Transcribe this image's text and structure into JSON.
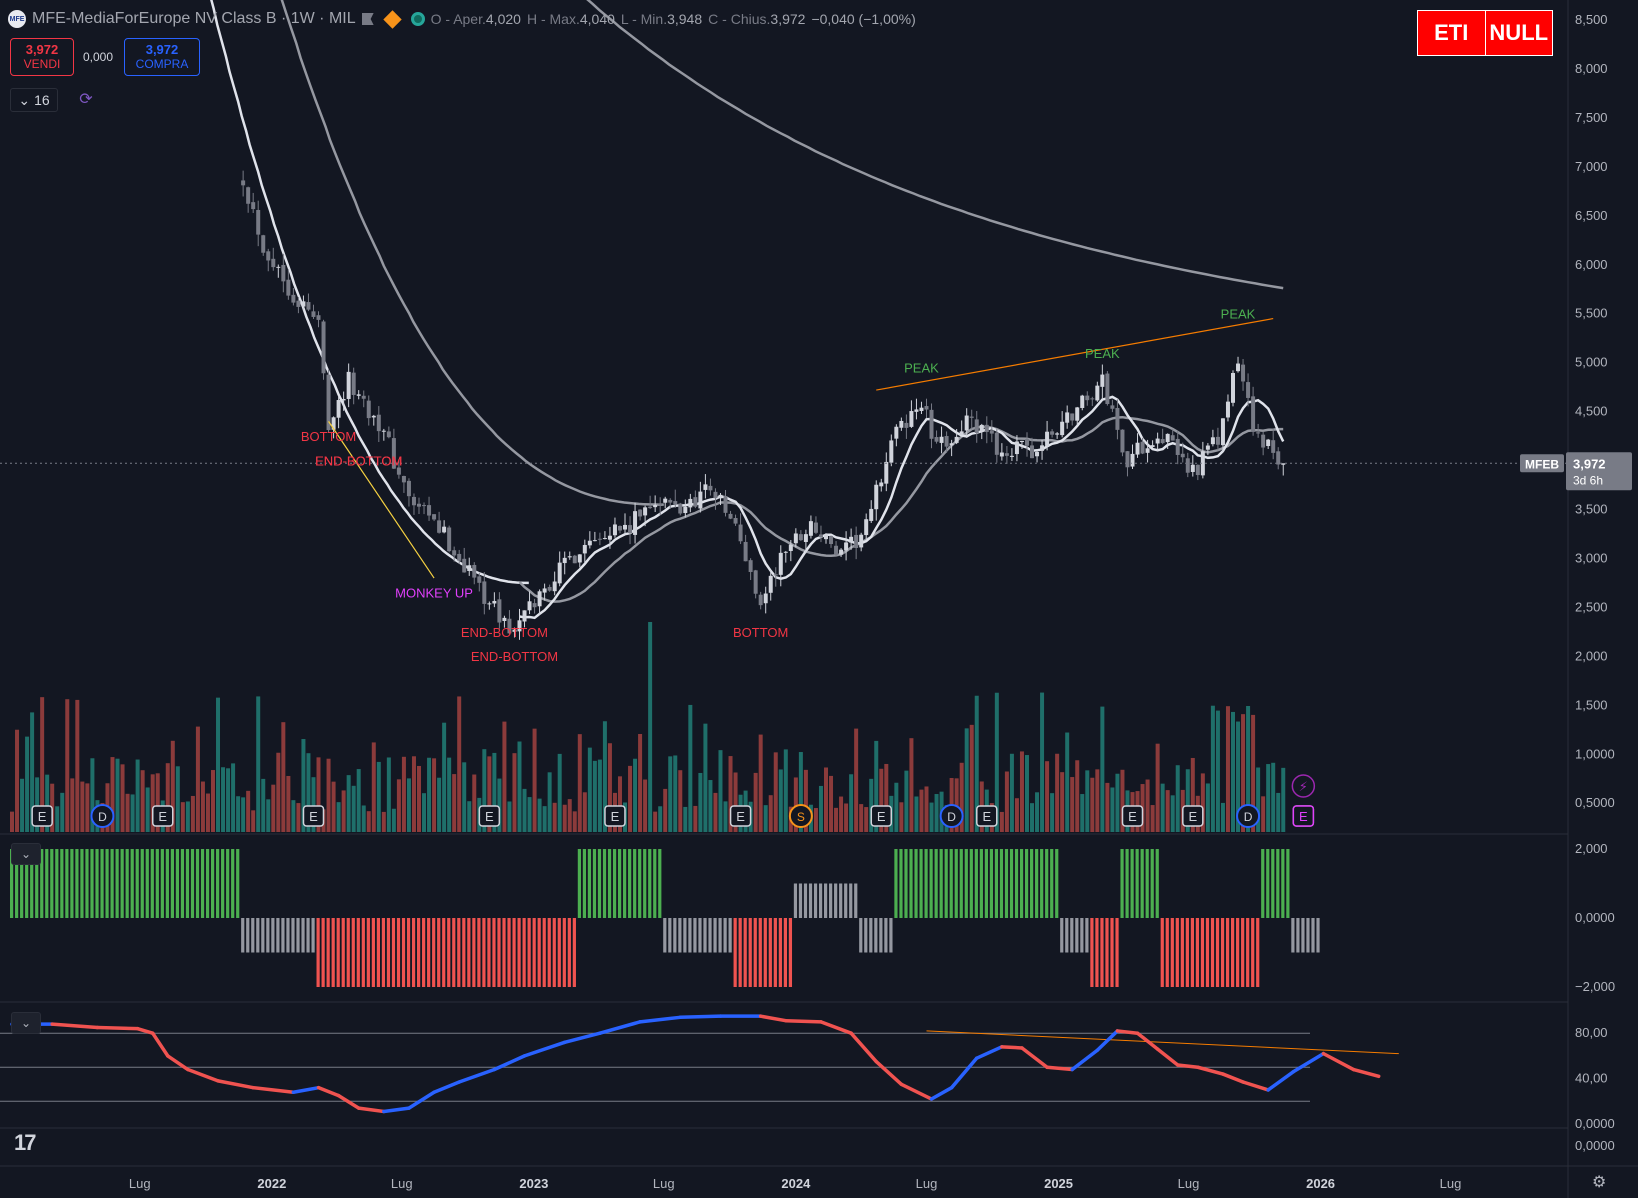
{
  "header": {
    "logo_text": "MFE",
    "title": "MFE-MediaForEurope NV Class B · 1W · MIL",
    "open_label": "O",
    "open_text": "Aper.",
    "open": "4,020",
    "high_label": "H",
    "high_text": "Max.",
    "high": "4,040",
    "low_label": "L",
    "low_text": "Min.",
    "low": "3,948",
    "close_label": "C",
    "close_text": "Chius.",
    "close": "3,972",
    "change": "−0,040 (−1,00%)"
  },
  "trade": {
    "sell_price": "3,972",
    "sell_label": "VENDI",
    "spread": "0,000",
    "buy_price": "3,972",
    "buy_label": "COMPRA"
  },
  "interval_value": "16",
  "eti_box": {
    "left": "ETI",
    "right": "NULL"
  },
  "price_tag": {
    "symbol": "MFEB",
    "price": "3,972",
    "countdown": "3d 6h"
  },
  "colors": {
    "background": "#131722",
    "up": "#d1d4dc",
    "down": "#787b86",
    "ma_fast": "#e0e3eb",
    "ma_slow": "#9598a1",
    "trendline": "#f57c00",
    "vol_up": "#1f6f6a",
    "vol_down": "#8c3b3b",
    "osc_pos": "#4caf50",
    "osc_neg": "#f05350",
    "osc_neutral": "#9598a1",
    "rsi_up": "#2962ff",
    "rsi_down": "#f05350",
    "label_red": "#f23645",
    "label_green": "#4caf50",
    "label_purple": "#e040fb"
  },
  "icons": [
    "flag-icon",
    "diamond-icon",
    "status-dot-icon",
    "chevron-down-icon",
    "sync-icon",
    "lightning-icon",
    "gear-icon"
  ],
  "chart_data": [
    {
      "type": "candlestick",
      "title": "MFE-MediaForEurope NV Class B · 1W · MIL",
      "x_axis_labels": [
        "Lug",
        "2022",
        "Lug",
        "2023",
        "Lug",
        "2024",
        "Lug",
        "2025",
        "Lug",
        "2026",
        "Lug"
      ],
      "y_axis_labels": [
        "8,500",
        "8,000",
        "7,500",
        "7,000",
        "6,500",
        "6,000",
        "5,500",
        "5,000",
        "4,500",
        "4,000",
        "3,500",
        "3,000",
        "2,500",
        "2,000",
        "1,500",
        "1,0000",
        "0,5000"
      ],
      "ylim": [
        0.25,
        8.6
      ],
      "approx_close_path": [
        [
          "2021-11-22",
          6.9
        ],
        [
          "2021-12-20",
          6.2
        ],
        [
          "2022-01-31",
          5.7
        ],
        [
          "2022-03-07",
          5.4
        ],
        [
          "2022-03-21",
          4.4
        ],
        [
          "2022-04-18",
          4.8
        ],
        [
          "2022-05-30",
          4.4
        ],
        [
          "2022-07-11",
          3.6
        ],
        [
          "2022-08-22",
          3.3
        ],
        [
          "2022-10-10",
          2.8
        ],
        [
          "2022-11-14",
          2.4
        ],
        [
          "2022-12-05",
          2.25
        ],
        [
          "2023-01-16",
          2.7
        ],
        [
          "2023-02-20",
          3.0
        ],
        [
          "2023-04-03",
          3.3
        ],
        [
          "2023-05-15",
          3.3
        ],
        [
          "2023-06-12",
          3.6
        ],
        [
          "2023-07-24",
          3.5
        ],
        [
          "2023-09-04",
          3.75
        ],
        [
          "2023-10-09",
          3.3
        ],
        [
          "2023-11-13",
          2.55
        ],
        [
          "2023-12-18",
          3.1
        ],
        [
          "2024-01-22",
          3.35
        ],
        [
          "2024-03-04",
          3.0
        ],
        [
          "2024-04-08",
          3.3
        ],
        [
          "2024-05-13",
          4.2
        ],
        [
          "2024-06-24",
          4.6
        ],
        [
          "2024-07-15",
          4.1
        ],
        [
          "2024-08-26",
          4.4
        ],
        [
          "2024-10-14",
          4.1
        ],
        [
          "2024-12-02",
          4.1
        ],
        [
          "2025-02-03",
          4.6
        ],
        [
          "2025-03-03",
          4.8
        ],
        [
          "2025-04-07",
          4.0
        ],
        [
          "2025-05-19",
          4.3
        ],
        [
          "2025-07-07",
          3.9
        ],
        [
          "2025-08-11",
          4.2
        ],
        [
          "2025-09-08",
          5.0
        ],
        [
          "2025-10-06",
          4.2
        ],
        [
          "2025-11-10",
          3.972
        ]
      ],
      "moving_averages": [
        {
          "name": "fast",
          "approx_end_value": 4.15
        },
        {
          "name": "medium",
          "approx_end_value": 4.1
        },
        {
          "name": "slow",
          "approx_end_value": 5.65
        }
      ],
      "annotations": [
        {
          "text": "BOTTOM",
          "color": "red",
          "date": "2022-03-21",
          "price": 4.2
        },
        {
          "text": "END-BOTTOM",
          "color": "red",
          "date": "2022-05-02",
          "price": 3.95
        },
        {
          "text": "END-BOTTOM",
          "color": "red",
          "date": "2022-05-02",
          "price": 3.95
        },
        {
          "text": "MONKEY UP",
          "color": "purple",
          "date": "2022-08-15",
          "price": 2.6
        },
        {
          "text": "END-BOTTOM",
          "color": "red",
          "date": "2022-11-21",
          "price": 2.2
        },
        {
          "text": "END-BOTTOM",
          "color": "red",
          "date": "2022-12-05",
          "price": 1.95
        },
        {
          "text": "BOTTOM",
          "color": "red",
          "date": "2023-11-13",
          "price": 2.2
        },
        {
          "text": "PEAK",
          "color": "green",
          "date": "2024-06-24",
          "price": 4.9
        },
        {
          "text": "PEAK",
          "color": "green",
          "date": "2025-03-03",
          "price": 5.05
        },
        {
          "text": "PEAK",
          "color": "green",
          "date": "2025-09-08",
          "price": 5.45
        }
      ],
      "event_markers": [
        "E",
        "D",
        "E",
        "E",
        "E",
        "E",
        "E",
        "S",
        "E",
        "D",
        "E",
        "E",
        "E",
        "D",
        "E",
        "E"
      ]
    },
    {
      "type": "bar",
      "name": "oscillator",
      "y_axis_labels": [
        "2,000",
        "0,0000",
        "−2,000"
      ],
      "ylim": [
        -2,
        2
      ],
      "segments": [
        {
          "state": "positive",
          "value": 2,
          "from": "2021-01-04",
          "to": "2021-11-15"
        },
        {
          "state": "neutral",
          "value": -1,
          "from": "2021-11-22",
          "to": "2022-02-28"
        },
        {
          "state": "negative",
          "value": -2,
          "from": "2022-03-07",
          "to": "2023-02-27"
        },
        {
          "state": "positive",
          "value": 2,
          "from": "2023-03-06",
          "to": "2023-06-26"
        },
        {
          "state": "neutral",
          "value": -1,
          "from": "2023-07-03",
          "to": "2023-10-02"
        },
        {
          "state": "negative",
          "value": -2,
          "from": "2023-10-09",
          "to": "2023-12-25"
        },
        {
          "state": "neutral",
          "value": 1,
          "from": "2024-01-01",
          "to": "2024-03-25"
        },
        {
          "state": "neutral",
          "value": -1,
          "from": "2024-04-01",
          "to": "2024-05-13"
        },
        {
          "state": "positive",
          "value": 2,
          "from": "2024-05-20",
          "to": "2024-12-30"
        },
        {
          "state": "neutral",
          "value": -1,
          "from": "2025-01-06",
          "to": "2025-02-10"
        },
        {
          "state": "negative",
          "value": -2,
          "from": "2025-02-17",
          "to": "2025-03-24"
        },
        {
          "state": "positive",
          "value": 2,
          "from": "2025-03-31",
          "to": "2025-05-19"
        },
        {
          "state": "negative",
          "value": -2,
          "from": "2025-05-26",
          "to": "2025-10-06"
        },
        {
          "state": "positive",
          "value": 2,
          "from": "2025-10-13",
          "to": "2025-11-17"
        },
        {
          "state": "neutral",
          "value": -1,
          "from": "2025-11-24",
          "to": "2025-12-29"
        }
      ]
    },
    {
      "type": "line",
      "name": "momentum",
      "y_axis_labels": [
        "80,00",
        "40,00",
        "0,0000"
      ],
      "ylim": [
        0,
        100
      ],
      "levels": [
        80,
        50,
        20
      ],
      "points": [
        [
          "2021-01-04",
          88
        ],
        [
          "2021-03-01",
          88
        ],
        [
          "2021-05-03",
          85
        ],
        [
          "2021-06-28",
          84
        ],
        [
          "2021-07-19",
          80
        ],
        [
          "2021-08-09",
          60
        ],
        [
          "2021-09-06",
          48
        ],
        [
          "2021-10-18",
          38
        ],
        [
          "2021-12-06",
          32
        ],
        [
          "2022-01-31",
          28
        ],
        [
          "2022-03-07",
          32
        ],
        [
          "2022-04-04",
          25
        ],
        [
          "2022-05-02",
          14
        ],
        [
          "2022-06-06",
          11
        ],
        [
          "2022-07-11",
          14
        ],
        [
          "2022-08-15",
          28
        ],
        [
          "2022-09-19",
          37
        ],
        [
          "2022-11-07",
          48
        ],
        [
          "2022-12-19",
          60
        ],
        [
          "2023-02-13",
          72
        ],
        [
          "2023-04-03",
          80
        ],
        [
          "2023-05-29",
          90
        ],
        [
          "2023-07-24",
          94
        ],
        [
          "2023-09-18",
          95
        ],
        [
          "2023-11-13",
          95
        ],
        [
          "2023-12-18",
          91
        ],
        [
          "2024-02-05",
          90
        ],
        [
          "2024-03-18",
          80
        ],
        [
          "2024-04-22",
          55
        ],
        [
          "2024-05-27",
          35
        ],
        [
          "2024-07-08",
          22
        ],
        [
          "2024-08-05",
          32
        ],
        [
          "2024-09-09",
          58
        ],
        [
          "2024-10-14",
          68
        ],
        [
          "2024-11-11",
          67
        ],
        [
          "2024-12-16",
          50
        ],
        [
          "2025-01-20",
          48
        ],
        [
          "2025-02-24",
          65
        ],
        [
          "2025-03-24",
          82
        ],
        [
          "2025-04-21",
          80
        ],
        [
          "2025-05-19",
          66
        ],
        [
          "2025-06-16",
          52
        ],
        [
          "2025-07-14",
          50
        ],
        [
          "2025-08-18",
          44
        ],
        [
          "2025-09-15",
          37
        ],
        [
          "2025-10-20",
          30
        ],
        [
          "2025-11-24",
          46
        ],
        [
          "2026-01-05",
          62
        ],
        [
          "2026-02-16",
          48
        ],
        [
          "2026-03-23",
          42
        ]
      ]
    }
  ]
}
